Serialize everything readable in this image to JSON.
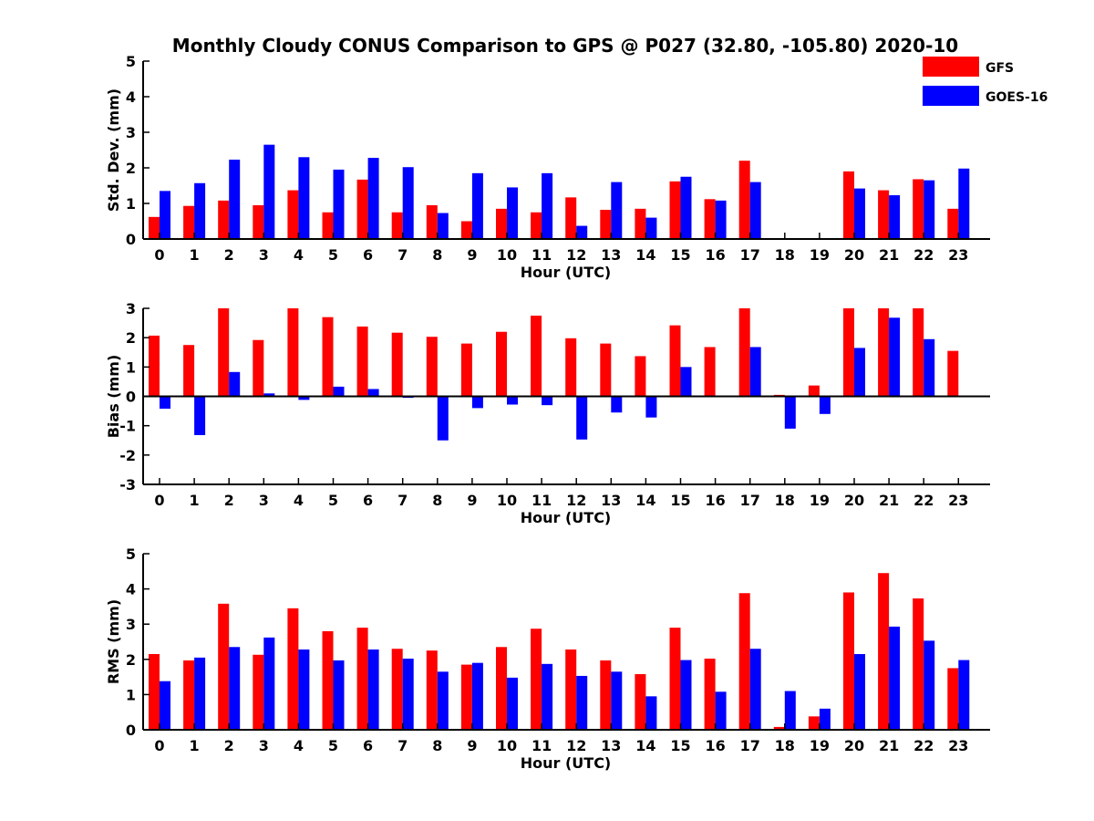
{
  "title": "Monthly Cloudy CONUS Comparison to GPS @ P027 (32.80, -105.80) 2020-10",
  "legend": {
    "placement": "top-right",
    "entries": [
      {
        "name": "GFS",
        "color": "#ff0000"
      },
      {
        "name": "GOES-16",
        "color": "#0000ff"
      }
    ]
  },
  "chart_data": [
    {
      "type": "bar",
      "xlabel": "Hour (UTC)",
      "ylabel": "Std. Dev. (mm)",
      "ylim": [
        0,
        5
      ],
      "yticks": [
        0,
        1,
        2,
        3,
        4,
        5
      ],
      "categories": [
        "0",
        "1",
        "2",
        "3",
        "4",
        "5",
        "6",
        "7",
        "8",
        "9",
        "10",
        "11",
        "12",
        "13",
        "14",
        "15",
        "16",
        "17",
        "18",
        "19",
        "20",
        "21",
        "22",
        "23"
      ],
      "series": [
        {
          "name": "GFS",
          "color": "#ff0000",
          "values": [
            0.62,
            0.93,
            1.08,
            0.95,
            1.37,
            0.75,
            1.67,
            0.75,
            0.95,
            0.5,
            0.85,
            0.75,
            1.17,
            0.82,
            0.85,
            1.62,
            1.12,
            2.2,
            0,
            0,
            1.9,
            1.37,
            1.68,
            0.85
          ]
        },
        {
          "name": "GOES-16",
          "color": "#0000ff",
          "values": [
            1.35,
            1.57,
            2.23,
            2.65,
            2.3,
            1.95,
            2.28,
            2.02,
            0.73,
            1.85,
            1.45,
            1.85,
            0.37,
            1.6,
            0.6,
            1.75,
            1.08,
            1.6,
            0,
            0,
            1.42,
            1.23,
            1.65,
            1.98
          ]
        }
      ]
    },
    {
      "type": "bar",
      "xlabel": "Hour (UTC)",
      "ylabel": "Bias (mm)",
      "ylim": [
        -3,
        3
      ],
      "yticks": [
        -3,
        -2,
        -1,
        0,
        1,
        2,
        3
      ],
      "categories": [
        "0",
        "1",
        "2",
        "3",
        "4",
        "5",
        "6",
        "7",
        "8",
        "9",
        "10",
        "11",
        "12",
        "13",
        "14",
        "15",
        "16",
        "17",
        "18",
        "19",
        "20",
        "21",
        "22",
        "23"
      ],
      "series": [
        {
          "name": "GFS",
          "color": "#ff0000",
          "values": [
            2.07,
            1.75,
            3.0,
            1.92,
            3.0,
            2.7,
            2.38,
            2.17,
            2.03,
            1.8,
            2.2,
            2.75,
            1.98,
            1.8,
            1.37,
            2.42,
            1.68,
            3.0,
            0.05,
            0.37,
            3.0,
            3.0,
            3.0,
            1.55
          ]
        },
        {
          "name": "GOES-16",
          "color": "#0000ff",
          "values": [
            -0.42,
            -1.32,
            0.83,
            0.1,
            -0.12,
            0.33,
            0.25,
            -0.05,
            -1.5,
            -0.4,
            -0.28,
            -0.3,
            -1.47,
            -0.55,
            -0.72,
            1.0,
            -0.03,
            1.68,
            -1.1,
            -0.6,
            1.65,
            2.68,
            1.95,
            0
          ]
        }
      ]
    },
    {
      "type": "bar",
      "xlabel": "Hour (UTC)",
      "ylabel": "RMS (mm)",
      "ylim": [
        0,
        5
      ],
      "yticks": [
        0,
        1,
        2,
        3,
        4,
        5
      ],
      "categories": [
        "0",
        "1",
        "2",
        "3",
        "4",
        "5",
        "6",
        "7",
        "8",
        "9",
        "10",
        "11",
        "12",
        "13",
        "14",
        "15",
        "16",
        "17",
        "18",
        "19",
        "20",
        "21",
        "22",
        "23"
      ],
      "series": [
        {
          "name": "GFS",
          "color": "#ff0000",
          "values": [
            2.15,
            1.97,
            3.58,
            2.13,
            3.45,
            2.8,
            2.9,
            2.3,
            2.25,
            1.85,
            2.35,
            2.87,
            2.28,
            1.97,
            1.58,
            2.9,
            2.02,
            3.88,
            0.08,
            0.38,
            3.9,
            4.45,
            3.73,
            1.75
          ]
        },
        {
          "name": "GOES-16",
          "color": "#0000ff",
          "values": [
            1.38,
            2.05,
            2.35,
            2.62,
            2.28,
            1.97,
            2.28,
            2.02,
            1.65,
            1.9,
            1.48,
            1.87,
            1.53,
            1.65,
            0.95,
            1.98,
            1.08,
            2.3,
            1.1,
            0.6,
            2.15,
            2.93,
            2.53,
            1.98
          ]
        }
      ]
    }
  ]
}
